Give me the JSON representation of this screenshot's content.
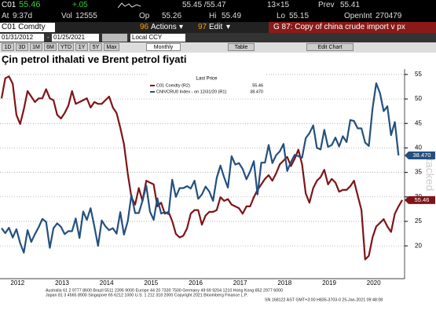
{
  "header": {
    "ticker": "C01",
    "price": "55.46",
    "change": "+.05",
    "bidask": "55.45 /55.47",
    "size": "13×15",
    "prev_label": "Prev",
    "prev": "55.41",
    "at_label": "At",
    "at": "9:37d",
    "vol_label": "Vol",
    "vol": "12555",
    "op_label": "Op",
    "op": "55.26",
    "hi_label": "Hi",
    "hi": "55.49",
    "lo_label": "Lo",
    "lo": "55.15",
    "oi_label": "OpenInt",
    "oi": "270479"
  },
  "toolbar": {
    "security": "C01 Comdty",
    "actions_num": "96",
    "actions": "Actions",
    "edit_num": "97",
    "edit": "Edit",
    "page": "G 87: Copy of china crude import v px",
    "start": "01/31/2012",
    "end": "01/25/2021",
    "currency": "Local CCY",
    "ranges": [
      "1D",
      "3D",
      "1M",
      "6M",
      "YTD",
      "1Y",
      "5Y",
      "Max"
    ],
    "period": "Monthly",
    "table": "Table",
    "edit_chart": "Edit Chart"
  },
  "chart_data": {
    "type": "line",
    "title": "Çin petrol ithalati ve Brent petrol fiyati",
    "legend_title": "Last Price",
    "watermark": "Stacked",
    "categories": [
      null,
      null,
      null,
      null,
      null,
      null,
      "2012",
      null,
      null,
      null,
      null,
      null,
      null,
      null,
      null,
      null,
      null,
      null,
      "2013",
      null,
      null,
      null,
      null,
      null,
      null,
      null,
      null,
      null,
      null,
      null,
      "2014",
      null,
      null,
      null,
      null,
      null,
      null,
      null,
      null,
      null,
      null,
      null,
      "2015",
      null,
      null,
      null,
      null,
      null,
      null,
      null,
      null,
      null,
      null,
      null,
      "2016",
      null,
      null,
      null,
      null,
      null,
      null,
      null,
      null,
      null,
      null,
      null,
      "2017",
      null,
      null,
      null,
      null,
      null,
      null,
      null,
      null,
      null,
      null,
      null,
      "2018",
      null,
      null,
      null,
      null,
      null,
      null,
      null,
      null,
      null,
      null,
      null,
      "2019",
      null,
      null,
      null,
      null,
      null,
      null,
      null,
      null,
      null,
      null,
      null,
      "2020",
      null,
      null,
      null,
      null,
      null,
      null
    ],
    "series": [
      {
        "name": "C01 Comdty (R2)",
        "color": "#7f1418",
        "axis": "y2",
        "last_label": "55.46",
        "values": [
          111,
          122,
          123,
          119,
          102,
          97,
          105,
          115,
          112,
          109,
          111,
          111,
          116,
          111,
          110,
          102,
          100,
          103,
          107,
          115,
          108,
          109,
          110,
          111,
          106,
          109,
          108,
          108,
          110,
          112,
          106,
          103,
          95,
          86,
          70,
          57,
          53,
          62,
          55,
          66,
          65,
          64,
          52,
          54,
          48,
          49,
          44,
          37,
          35,
          36,
          40,
          48,
          50,
          50,
          42,
          47,
          49,
          49,
          50,
          57,
          55,
          56,
          53,
          52,
          51,
          48,
          52,
          52,
          57,
          61,
          64,
          67,
          69,
          66,
          70,
          75,
          77,
          79,
          74,
          78,
          83,
          75,
          59,
          54,
          62,
          66,
          68,
          72,
          64,
          67,
          65,
          60,
          61,
          61,
          63,
          66,
          58,
          50,
          23,
          25,
          35,
          41,
          43,
          45,
          41,
          38,
          48,
          52,
          55.46
        ]
      },
      {
        "name": "CNIVCRU0 Index - on 12/31/20 (R1)",
        "color": "#24507f",
        "axis": "y",
        "last_label": "38.470",
        "values": [
          23.6,
          22.6,
          23.7,
          21.7,
          23.4,
          20.6,
          18.6,
          23.2,
          20.8,
          22.4,
          23.8,
          25.5,
          24.9,
          19.6,
          23.6,
          24.6,
          23.9,
          22.4,
          23.0,
          23.0,
          25.6,
          21.6,
          27.0,
          25.3,
          27.7,
          24.0,
          20.0,
          25.2,
          24.0,
          23.2,
          23.6,
          22.5,
          26.9,
          22.3,
          25.0,
          30.4,
          26.7,
          26.7,
          29.2,
          32.3,
          27.0,
          25.3,
          29.7,
          26.6,
          26.9,
          26.5,
          33.5,
          30.0,
          31.8,
          31.8,
          32.2,
          31.7,
          33.3,
          29.6,
          30.5,
          32.1,
          31.1,
          29.2,
          33.9,
          36.4,
          34.0,
          31.9,
          38.3,
          36.6,
          36.9,
          35.7,
          33.6,
          35.2,
          37.3,
          30.5,
          37.0,
          37.0,
          40.6,
          36.9,
          38.5,
          39.3,
          40.8,
          35.3,
          37.1,
          38.6,
          38.3,
          38.0,
          42.0,
          43.0,
          44.6,
          40.0,
          39.7,
          43.7,
          40.2,
          40.6,
          42.1,
          40.3,
          42.4,
          41.2,
          45.7,
          45.5,
          44.0,
          44.0,
          41.1,
          40.4,
          48.0,
          53.2,
          51.2,
          47.5,
          48.5,
          42.6,
          45.3,
          38.47,
          null
        ]
      }
    ],
    "ylim": [
      13.3,
      56.1
    ],
    "yticks": [
      20,
      25,
      30,
      35,
      40,
      45,
      50,
      55
    ],
    "y2lim": [
      12.5,
      127
    ],
    "grid": true
  },
  "footer": [
    "Australia 61 2 9777 8600 Brazil 5511 2395 9000 Europe 44 20 7330 7500 Germany 49 69 9204 1210 Hong Kong 852 2977 6000",
    "Japan 81 3 4565 8900        Singapore 65 6212 1000        U.S. 1 212 318 2000        Copyright 2021 Bloomberg Finance L.P.",
    "SN 168122 AST  GMT+3:00 H835-3703-0 25-Jan-2021 09:48:08"
  ]
}
